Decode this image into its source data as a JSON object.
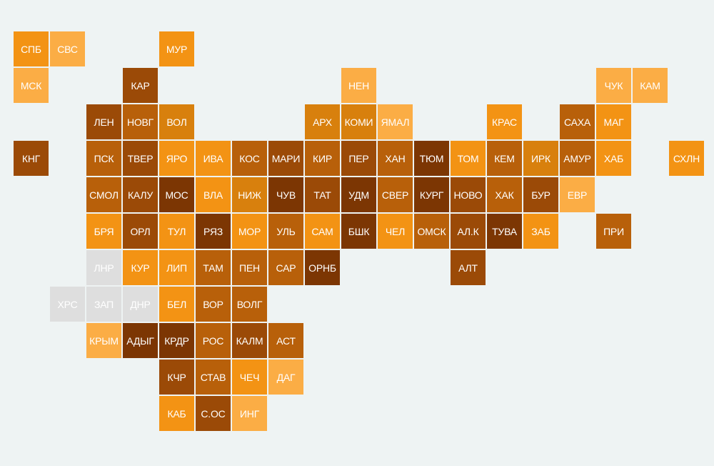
{
  "tiles": [
    {
      "label": "СПБ",
      "color": "#f39314"
    },
    {
      "label": "СВС",
      "color": "#fbad45"
    },
    {
      "label": "МУР",
      "color": "#f39314"
    },
    {
      "label": "МСК",
      "color": "#fbad45"
    },
    {
      "label": "КАР",
      "color": "#9b4a07"
    },
    {
      "label": "НЕН",
      "color": "#fbad45"
    },
    {
      "label": "ЧУК",
      "color": "#fbad45"
    },
    {
      "label": "КАМ",
      "color": "#fbad45"
    },
    {
      "label": "ЛЕН",
      "color": "#9b4a07"
    },
    {
      "label": "НОВГ",
      "color": "#b8600a"
    },
    {
      "label": "ВОЛ",
      "color": "#d8800d"
    },
    {
      "label": "АРХ",
      "color": "#d8800d"
    },
    {
      "label": "КОМИ",
      "color": "#d8800d"
    },
    {
      "label": "ЯМАЛ",
      "color": "#fbad45"
    },
    {
      "label": "КРАС",
      "color": "#f39314"
    },
    {
      "label": "САХА",
      "color": "#b8600a"
    },
    {
      "label": "МАГ",
      "color": "#f39314"
    },
    {
      "label": "КНГ",
      "color": "#9b4a07"
    },
    {
      "label": "ПСК",
      "color": "#b8600a"
    },
    {
      "label": "ТВЕР",
      "color": "#9b4a07"
    },
    {
      "label": "ЯРО",
      "color": "#f39314"
    },
    {
      "label": "ИВА",
      "color": "#f39314"
    },
    {
      "label": "КОС",
      "color": "#b8600a"
    },
    {
      "label": "МАРИ",
      "color": "#9b4a07"
    },
    {
      "label": "КИР",
      "color": "#b8600a"
    },
    {
      "label": "ПЕР",
      "color": "#9b4a07"
    },
    {
      "label": "ХАН",
      "color": "#b8600a"
    },
    {
      "label": "ТЮМ",
      "color": "#7c3603"
    },
    {
      "label": "ТОМ",
      "color": "#f39314"
    },
    {
      "label": "КЕМ",
      "color": "#b8600a"
    },
    {
      "label": "ИРК",
      "color": "#d8800d"
    },
    {
      "label": "АМУР",
      "color": "#b8600a"
    },
    {
      "label": "ХАБ",
      "color": "#f39314"
    },
    {
      "label": "СХЛН",
      "color": "#f39314"
    },
    {
      "label": "СМОЛ",
      "color": "#b8600a"
    },
    {
      "label": "КАЛУ",
      "color": "#9b4a07"
    },
    {
      "label": "МОС",
      "color": "#7c3603"
    },
    {
      "label": "ВЛА",
      "color": "#f39314"
    },
    {
      "label": "НИЖ",
      "color": "#d8800d"
    },
    {
      "label": "ЧУВ",
      "color": "#7c3603"
    },
    {
      "label": "ТАТ",
      "color": "#9b4a07"
    },
    {
      "label": "УДМ",
      "color": "#7c3603"
    },
    {
      "label": "СВЕР",
      "color": "#b8600a"
    },
    {
      "label": "КУРГ",
      "color": "#7c3603"
    },
    {
      "label": "НОВО",
      "color": "#9b4a07"
    },
    {
      "label": "ХАК",
      "color": "#b8600a"
    },
    {
      "label": "БУР",
      "color": "#9b4a07"
    },
    {
      "label": "ЕВР",
      "color": "#fbad45"
    },
    {
      "label": "БРЯ",
      "color": "#f39314"
    },
    {
      "label": "ОРЛ",
      "color": "#9b4a07"
    },
    {
      "label": "ТУЛ",
      "color": "#f39314"
    },
    {
      "label": "РЯЗ",
      "color": "#7c3603"
    },
    {
      "label": "МОР",
      "color": "#f39314"
    },
    {
      "label": "УЛЬ",
      "color": "#b8600a"
    },
    {
      "label": "САМ",
      "color": "#f39314"
    },
    {
      "label": "БШК",
      "color": "#7c3603"
    },
    {
      "label": "ЧЕЛ",
      "color": "#f39314"
    },
    {
      "label": "ОМСК",
      "color": "#b8600a"
    },
    {
      "label": "АЛ.К",
      "color": "#9b4a07"
    },
    {
      "label": "ТУВА",
      "color": "#7c3603"
    },
    {
      "label": "ЗАБ",
      "color": "#f39314"
    },
    {
      "label": "ПРИ",
      "color": "#b8600a"
    },
    {
      "label": "ЛНР",
      "color": "#dedede"
    },
    {
      "label": "КУР",
      "color": "#f39314"
    },
    {
      "label": "ЛИП",
      "color": "#f39314"
    },
    {
      "label": "ТАМ",
      "color": "#b8600a"
    },
    {
      "label": "ПЕН",
      "color": "#b8600a"
    },
    {
      "label": "САР",
      "color": "#b8600a"
    },
    {
      "label": "ОРНБ",
      "color": "#7c3603"
    },
    {
      "label": "АЛТ",
      "color": "#9b4a07"
    },
    {
      "label": "ХРС",
      "color": "#dedede"
    },
    {
      "label": "ЗАП",
      "color": "#dedede"
    },
    {
      "label": "ДНР",
      "color": "#dedede"
    },
    {
      "label": "БЕЛ",
      "color": "#f39314"
    },
    {
      "label": "ВОР",
      "color": "#b8600a"
    },
    {
      "label": "ВОЛГ",
      "color": "#b8600a"
    },
    {
      "label": "КРЫМ",
      "color": "#fbad45"
    },
    {
      "label": "АДЫГ",
      "color": "#7c3603"
    },
    {
      "label": "КРДР",
      "color": "#7c3603"
    },
    {
      "label": "РОС",
      "color": "#b8600a"
    },
    {
      "label": "КАЛМ",
      "color": "#9b4a07"
    },
    {
      "label": "АСТ",
      "color": "#b8600a"
    },
    {
      "label": "КЧР",
      "color": "#9b4a07"
    },
    {
      "label": "СТАВ",
      "color": "#b8600a"
    },
    {
      "label": "ЧЕЧ",
      "color": "#f39314"
    },
    {
      "label": "ДАГ",
      "color": "#fbad45"
    },
    {
      "label": "КАБ",
      "color": "#f39314"
    },
    {
      "label": "С.ОС",
      "color": "#9b4a07"
    },
    {
      "label": "ИНГ",
      "color": "#fbad45"
    }
  ]
}
